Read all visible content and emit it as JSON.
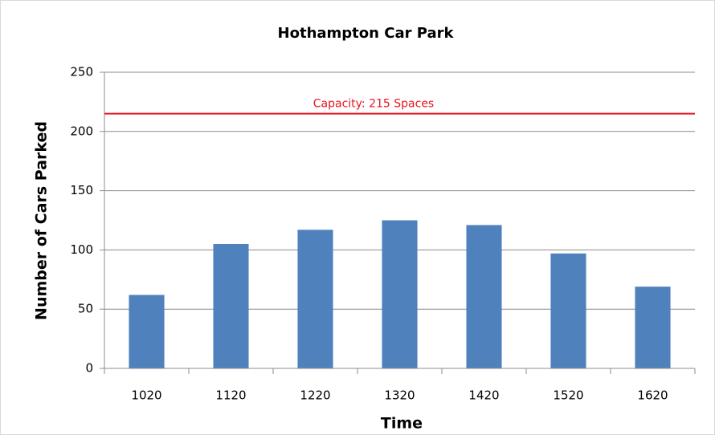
{
  "chart_data": {
    "type": "bar",
    "title": "Hothampton Car Park",
    "x_label": "Time",
    "y_label": "Number of Cars Parked",
    "categories": [
      "1020",
      "1120",
      "1220",
      "1320",
      "1420",
      "1520",
      "1620"
    ],
    "values": [
      62,
      105,
      117,
      125,
      121,
      97,
      69
    ],
    "color": "#4f81bd",
    "ylim": [
      0,
      250
    ],
    "yticks": [
      0,
      50,
      100,
      150,
      200,
      250
    ],
    "grid": true,
    "reference_line": {
      "value": 215,
      "label": "Capacity: 215 Spaces",
      "color": "#e8141c"
    }
  }
}
